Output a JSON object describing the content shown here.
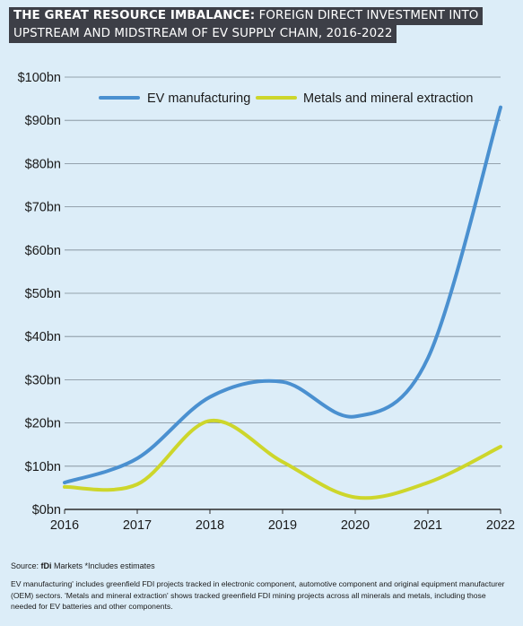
{
  "header": {
    "title_bold": "THE GREAT RESOURCE IMBALANCE:",
    "title_rest": "FOREIGN DIRECT INVESTMENT INTO",
    "title_line2": "UPSTREAM AND MIDSTREAM OF EV SUPPLY CHAIN, 2016-2022"
  },
  "chart_data": {
    "type": "line",
    "title": "THE GREAT RESOURCE IMBALANCE: FOREIGN DIRECT INVESTMENT INTO UPSTREAM AND MIDSTREAM OF EV SUPPLY CHAIN, 2016-2022",
    "x": [
      2016,
      2017,
      2018,
      2019,
      2020,
      2021,
      2022
    ],
    "x_tick_labels": [
      "2016",
      "2017",
      "2018",
      "2019",
      "2020",
      "2021",
      "2022"
    ],
    "y_tick_labels": [
      "$0bn",
      "$10bn",
      "$20bn",
      "$30bn",
      "$40bn",
      "$50bn",
      "$60bn",
      "$70bn",
      "$80bn",
      "$90bn",
      "$100bn"
    ],
    "ylim": [
      0,
      100
    ],
    "xlim": [
      2016,
      2022
    ],
    "grid": "horizontal",
    "legend_position": "top",
    "series": [
      {
        "name": "EV manufacturing",
        "color": "#4a90d0",
        "values": [
          6.2,
          11.8,
          26,
          29.5,
          21.5,
          35,
          93
        ]
      },
      {
        "name": "Metals and mineral extraction",
        "color": "#cdd62b",
        "values": [
          5.2,
          5.8,
          20.5,
          11,
          2.8,
          6.2,
          14.5
        ]
      }
    ]
  },
  "footer": {
    "source_prefix": "Source: ",
    "source_brand": "fDi",
    "source_rest": " Markets   *Includes estimates",
    "note": "EV manufacturing' includes greenfield FDI projects tracked in electronic component, automotive component and original equipment manufacturer (OEM) sectors. 'Metals and mineral extraction' shows tracked greenfield FDI mining projects across all minerals and metals, including those needed for EV batteries and other components."
  },
  "colors": {
    "background": "#dcedf8",
    "title_bar": "#3d3f47",
    "grid": "#7d8a94"
  }
}
